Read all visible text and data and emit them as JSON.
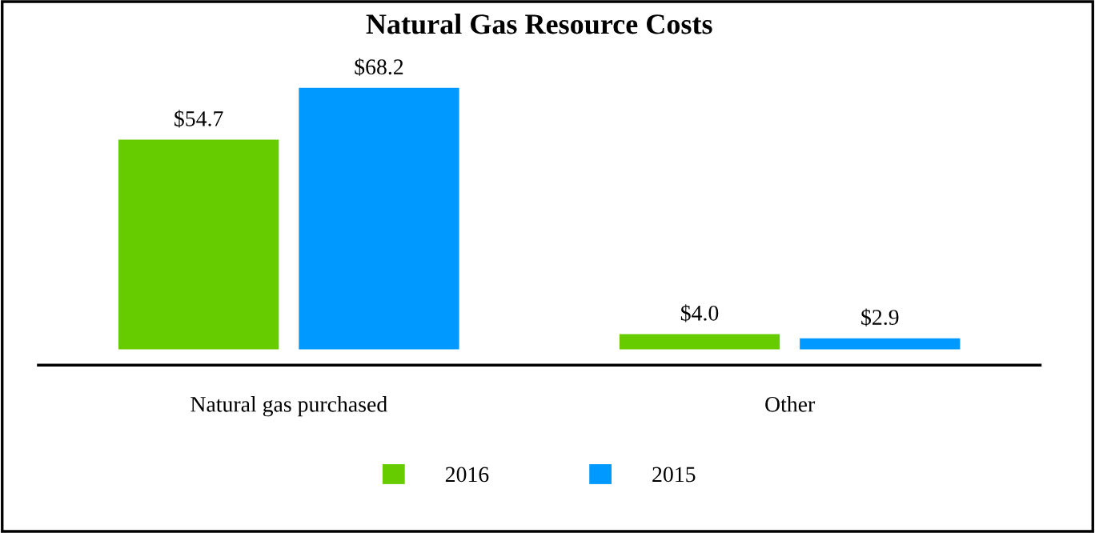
{
  "chart_data": {
    "type": "bar",
    "title": "Natural Gas Resource Costs",
    "categories": [
      "Natural gas purchased",
      "Other"
    ],
    "series": [
      {
        "name": "2016",
        "color": "#66cc00",
        "values": [
          54.7,
          4.0
        ],
        "value_labels": [
          "$54.7",
          "$4.0"
        ]
      },
      {
        "name": "2015",
        "color": "#0099ff",
        "values": [
          68.2,
          2.9
        ],
        "value_labels": [
          "$68.2",
          "$2.9"
        ]
      }
    ],
    "legend": "bottom",
    "grid": false
  }
}
